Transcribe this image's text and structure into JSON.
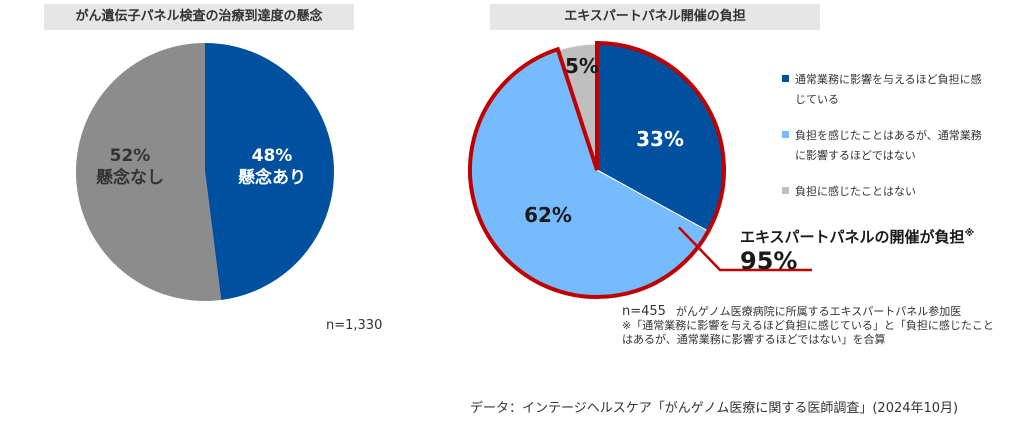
{
  "chart1": {
    "title": "がん遺伝子パネル検査の治療到達度の懸念",
    "n_label": "n=1,330"
  },
  "chart2": {
    "title": "エキスパートパネル開催の負担",
    "legend": [
      {
        "label": "通常業務に影響を与えるほど負担に感じている",
        "color": "#0050a0"
      },
      {
        "label": "負担を感じたことはあるが、通常業務に影響するほどではない",
        "color": "#77bbff"
      },
      {
        "label": "負担に感じたことはない",
        "color": "#bfbfbf"
      }
    ],
    "callout_text": "エキスパートパネルの開催が負担",
    "callout_mark": "※",
    "callout_pct": "95%",
    "n_label": "n=455",
    "n_desc": "がんゲノム医療病院に所属するエキスパートパネル参加医",
    "note": "※「通常業務に影響を与えるほど負担に感じている」と「負担に感じたことはあるが、通常業務に影響するほどではない」を合算"
  },
  "source": "データ：インテージヘルスケア「がんゲノム医療に関する医師調査」(2024年10月)",
  "chart_data": [
    {
      "type": "pie",
      "title": "がん遺伝子パネル検査の治療到達度の懸念",
      "slices": [
        {
          "label": "懸念あり",
          "value": 48,
          "display": "48%",
          "color": "#0050a0"
        },
        {
          "label": "懸念なし",
          "value": 52,
          "display": "52%",
          "color": "#8c8c8c"
        }
      ]
    },
    {
      "type": "pie",
      "title": "エキスパートパネル開催の負担",
      "slices": [
        {
          "label": "通常業務に影響を与えるほど負担に感じている",
          "value": 33,
          "display": "33%",
          "color": "#0050a0"
        },
        {
          "label": "負担を感じたことはあるが、通常業務に影響するほどではない",
          "value": 62,
          "display": "62%",
          "color": "#77bbff"
        },
        {
          "label": "負担に感じたことはない",
          "value": 5,
          "display": "5%",
          "color": "#bfbfbf"
        }
      ],
      "highlight_color": "#c00000"
    }
  ]
}
